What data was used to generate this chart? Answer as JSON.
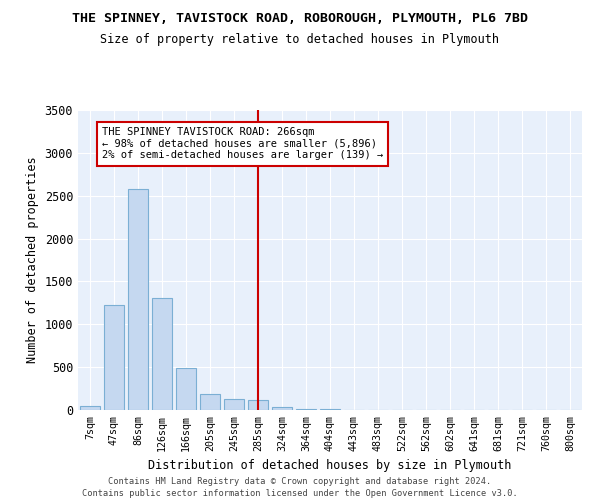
{
  "title": "THE SPINNEY, TAVISTOCK ROAD, ROBOROUGH, PLYMOUTH, PL6 7BD",
  "subtitle": "Size of property relative to detached houses in Plymouth",
  "xlabel": "Distribution of detached houses by size in Plymouth",
  "ylabel": "Number of detached properties",
  "bar_color": "#c5d8f0",
  "bar_edge_color": "#7bafd4",
  "background_color": "#e8f0fb",
  "grid_color": "#ffffff",
  "categories": [
    "7sqm",
    "47sqm",
    "86sqm",
    "126sqm",
    "166sqm",
    "205sqm",
    "245sqm",
    "285sqm",
    "324sqm",
    "364sqm",
    "404sqm",
    "443sqm",
    "483sqm",
    "522sqm",
    "562sqm",
    "602sqm",
    "641sqm",
    "681sqm",
    "721sqm",
    "760sqm",
    "800sqm"
  ],
  "values": [
    50,
    1220,
    2580,
    1310,
    490,
    185,
    125,
    120,
    40,
    15,
    10,
    5,
    5,
    3,
    2,
    2,
    2,
    1,
    1,
    1,
    1
  ],
  "ylim": [
    0,
    3500
  ],
  "yticks": [
    0,
    500,
    1000,
    1500,
    2000,
    2500,
    3000,
    3500
  ],
  "vline_x_idx": 7,
  "vline_color": "#cc0000",
  "annotation_box_text": "THE SPINNEY TAVISTOCK ROAD: 266sqm\n← 98% of detached houses are smaller (5,896)\n2% of semi-detached houses are larger (139) →",
  "annotation_box_color": "#cc0000",
  "footer_line1": "Contains HM Land Registry data © Crown copyright and database right 2024.",
  "footer_line2": "Contains public sector information licensed under the Open Government Licence v3.0."
}
